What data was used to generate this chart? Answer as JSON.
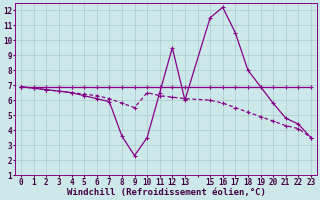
{
  "bg_color": "#cce8e8",
  "grid_color": "#aacccc",
  "line_color": "#880088",
  "xlabel": "Windchill (Refroidissement éolien,°C)",
  "xlim": [
    -0.5,
    23.5
  ],
  "ylim": [
    1,
    12.5
  ],
  "xtick_labels": [
    "0",
    "1",
    "2",
    "3",
    "4",
    "5",
    "6",
    "7",
    "8",
    "9",
    "10",
    "11",
    "12",
    "13",
    "",
    "15",
    "16",
    "17",
    "18",
    "19",
    "20",
    "21",
    "22",
    "23"
  ],
  "xtick_pos": [
    0,
    1,
    2,
    3,
    4,
    5,
    6,
    7,
    8,
    9,
    10,
    11,
    12,
    13,
    14,
    15,
    16,
    17,
    18,
    19,
    20,
    21,
    22,
    23
  ],
  "yticks": [
    1,
    2,
    3,
    4,
    5,
    6,
    7,
    8,
    9,
    10,
    11,
    12
  ],
  "line1_x": [
    0,
    1,
    2,
    3,
    4,
    5,
    6,
    7,
    8,
    9,
    10,
    11,
    12,
    13,
    15,
    16,
    17,
    18,
    19,
    20,
    21,
    22,
    23
  ],
  "line1_y": [
    6.9,
    6.9,
    6.9,
    6.9,
    6.9,
    6.9,
    6.9,
    6.9,
    6.9,
    6.9,
    6.9,
    6.9,
    6.9,
    6.9,
    6.9,
    6.9,
    6.9,
    6.9,
    6.9,
    6.9,
    6.9,
    6.9,
    6.9
  ],
  "line2_x": [
    0,
    1,
    2,
    3,
    4,
    5,
    6,
    7,
    8,
    9,
    10,
    11,
    12,
    13,
    15,
    16,
    17,
    18,
    19,
    20,
    21,
    22,
    23
  ],
  "line2_y": [
    6.9,
    6.8,
    6.7,
    6.6,
    6.5,
    6.4,
    6.3,
    6.1,
    5.8,
    5.5,
    6.5,
    6.3,
    6.2,
    6.1,
    6.0,
    5.8,
    5.5,
    5.2,
    4.9,
    4.6,
    4.3,
    4.1,
    3.5
  ],
  "line3_x": [
    0,
    1,
    2,
    3,
    4,
    5,
    6,
    7,
    8,
    9,
    10,
    11,
    12,
    13,
    15,
    16,
    17,
    18,
    19,
    20,
    21,
    22,
    23
  ],
  "line3_y": [
    6.9,
    6.8,
    6.7,
    6.6,
    6.5,
    6.3,
    6.1,
    5.9,
    3.6,
    2.3,
    3.5,
    6.5,
    9.5,
    6.0,
    11.5,
    12.2,
    10.5,
    8.0,
    6.9,
    5.8,
    4.8,
    4.4,
    3.5
  ],
  "font_size_label": 6.5,
  "font_size_tick": 5.5
}
